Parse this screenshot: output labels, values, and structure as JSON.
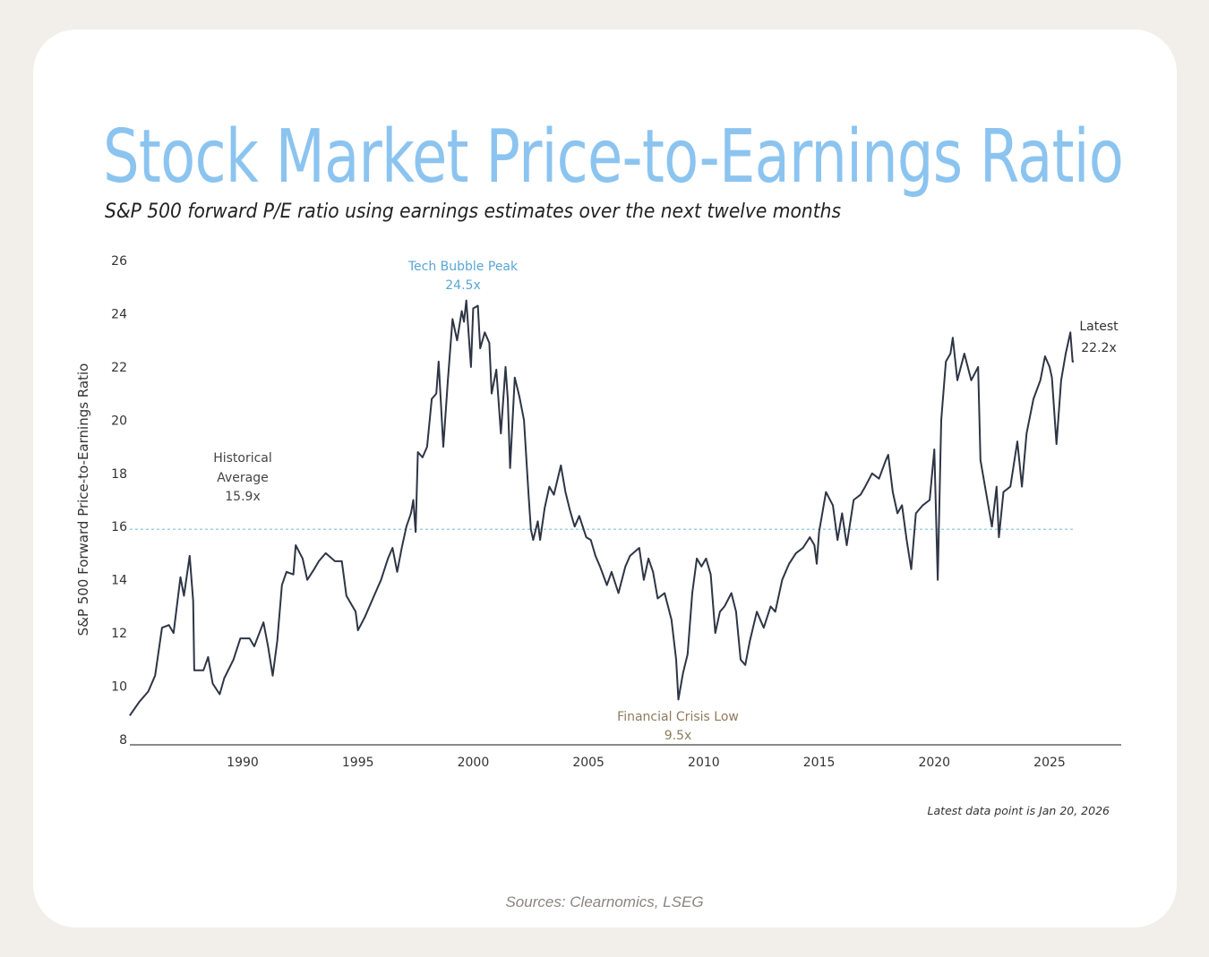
{
  "header": {
    "title": "Stock Market Price-to-Earnings Ratio",
    "subtitle": "S&P 500 forward P/E ratio using earnings estimates over the next twelve months"
  },
  "footer": {
    "sources": "Sources: Clearnomics, LSEG",
    "note": "Latest data point is Jan 20, 2026"
  },
  "colors": {
    "title": "#8cc4f0",
    "line": "#2e3545",
    "average_line": "#7fc0e6",
    "peak_label": "#5aa6d6",
    "low_label": "#8f7a5e"
  },
  "chart_data": {
    "type": "line",
    "ylabel": "S&P 500 Forward Price-to-Earnings Ratio",
    "xlabel": "",
    "xlim": [
      1985.1,
      2028.3
    ],
    "ylim": [
      8,
      26
    ],
    "xticks": [
      1990,
      1995,
      2000,
      2005,
      2010,
      2015,
      2020,
      2025
    ],
    "yticks": [
      8,
      10,
      12,
      14,
      16,
      18,
      20,
      22,
      24,
      26
    ],
    "grid": false,
    "average": {
      "value": 15.9,
      "label_lines": [
        "Historical",
        "Average",
        "15.9x"
      ]
    },
    "annotations": [
      {
        "id": "peak",
        "lines": [
          "Tech Bubble Peak",
          "24.5x"
        ],
        "x": 1999.7,
        "y": 24.5
      },
      {
        "id": "low",
        "lines": [
          "Financial Crisis Low",
          "9.5x"
        ],
        "x": 2008.9,
        "y": 9.5
      },
      {
        "id": "latest",
        "lines": [
          "Latest",
          "22.2x"
        ],
        "x": 2026.05,
        "y": 22.2
      }
    ],
    "series": [
      {
        "x": [
          1985.1,
          1985.5,
          1985.9,
          1986.2,
          1986.5,
          1986.8,
          1987.0,
          1987.3,
          1987.45,
          1987.7,
          1987.85,
          1987.9,
          1988.3,
          1988.5,
          1988.7,
          1989.0,
          1989.2,
          1989.6,
          1989.9,
          1990.3,
          1990.5,
          1990.9,
          1991.1,
          1991.3,
          1991.5,
          1991.7,
          1991.9,
          1992.2,
          1992.3,
          1992.6,
          1992.8,
          1993.1,
          1993.3,
          1993.6,
          1994.0,
          1994.3,
          1994.5,
          1994.9,
          1995.0,
          1995.3,
          1995.7,
          1996.0,
          1996.3,
          1996.5,
          1996.7,
          1996.9,
          1997.1,
          1997.3,
          1997.4,
          1997.5,
          1997.6,
          1997.8,
          1998.0,
          1998.2,
          1998.4,
          1998.5,
          1998.7,
          1998.9,
          1999.1,
          1999.3,
          1999.5,
          1999.6,
          1999.7,
          1999.9,
          2000.0,
          2000.2,
          2000.3,
          2000.5,
          2000.7,
          2000.8,
          2001.0,
          2001.2,
          2001.4,
          2001.5,
          2001.6,
          2001.8,
          2002.0,
          2002.2,
          2002.4,
          2002.5,
          2002.6,
          2002.8,
          2002.9,
          2003.1,
          2003.3,
          2003.5,
          2003.8,
          2004.0,
          2004.2,
          2004.4,
          2004.6,
          2004.9,
          2005.1,
          2005.3,
          2005.5,
          2005.8,
          2006.0,
          2006.3,
          2006.6,
          2006.8,
          2007.2,
          2007.4,
          2007.6,
          2007.8,
          2008.0,
          2008.3,
          2008.6,
          2008.8,
          2008.9,
          2009.1,
          2009.3,
          2009.5,
          2009.7,
          2009.9,
          2010.1,
          2010.3,
          2010.5,
          2010.7,
          2010.9,
          2011.2,
          2011.4,
          2011.6,
          2011.8,
          2012.0,
          2012.3,
          2012.6,
          2012.9,
          2013.1,
          2013.4,
          2013.7,
          2014.0,
          2014.3,
          2014.6,
          2014.8,
          2014.9,
          2015.0,
          2015.3,
          2015.6,
          2015.8,
          2016.0,
          2016.2,
          2016.5,
          2016.8,
          2017.0,
          2017.3,
          2017.6,
          2017.9,
          2018.0,
          2018.2,
          2018.4,
          2018.6,
          2018.8,
          2019.0,
          2019.2,
          2019.5,
          2019.8,
          2020.0,
          2020.15,
          2020.3,
          2020.5,
          2020.7,
          2020.8,
          2021.0,
          2021.3,
          2021.6,
          2021.9,
          2022.0,
          2022.3,
          2022.5,
          2022.7,
          2022.8,
          2023.0,
          2023.3,
          2023.6,
          2023.8,
          2024.0,
          2024.3,
          2024.6,
          2024.8,
          2025.0,
          2025.1,
          2025.3,
          2025.5,
          2025.7,
          2025.9,
          2026.0,
          2026.05
        ],
        "y": [
          8.9,
          9.4,
          9.8,
          10.4,
          12.2,
          12.3,
          12.0,
          14.1,
          13.4,
          14.9,
          13.2,
          10.6,
          10.6,
          11.1,
          10.1,
          9.7,
          10.3,
          11.0,
          11.8,
          11.8,
          11.5,
          12.4,
          11.5,
          10.4,
          11.7,
          13.8,
          14.3,
          14.2,
          15.3,
          14.8,
          14.0,
          14.4,
          14.7,
          15.0,
          14.7,
          14.7,
          13.4,
          12.8,
          12.1,
          12.6,
          13.4,
          14.0,
          14.8,
          15.2,
          14.3,
          15.2,
          16.0,
          16.5,
          17.0,
          15.8,
          18.8,
          18.6,
          19.0,
          20.8,
          21.0,
          22.2,
          19.0,
          21.5,
          23.8,
          23.0,
          24.1,
          23.7,
          24.5,
          22.0,
          24.2,
          24.3,
          22.7,
          23.3,
          22.9,
          21.0,
          21.9,
          19.5,
          22.0,
          20.8,
          18.2,
          21.6,
          20.9,
          20.0,
          17.2,
          15.9,
          15.5,
          16.2,
          15.5,
          16.7,
          17.5,
          17.2,
          18.3,
          17.3,
          16.6,
          16.0,
          16.4,
          15.6,
          15.5,
          14.9,
          14.5,
          13.8,
          14.3,
          13.5,
          14.5,
          14.9,
          15.2,
          14.0,
          14.8,
          14.3,
          13.3,
          13.5,
          12.5,
          11.0,
          9.5,
          10.5,
          11.2,
          13.5,
          14.8,
          14.5,
          14.8,
          14.2,
          12.0,
          12.8,
          13.0,
          13.5,
          12.8,
          11.0,
          10.8,
          11.7,
          12.8,
          12.2,
          13.0,
          12.8,
          14.0,
          14.6,
          15.0,
          15.2,
          15.6,
          15.3,
          14.6,
          15.8,
          17.3,
          16.8,
          15.5,
          16.5,
          15.3,
          17.0,
          17.2,
          17.5,
          18.0,
          17.8,
          18.5,
          18.7,
          17.3,
          16.5,
          16.8,
          15.5,
          14.4,
          16.5,
          16.8,
          17.0,
          18.9,
          14.0,
          20.0,
          22.2,
          22.5,
          23.1,
          21.5,
          22.5,
          21.5,
          22.0,
          18.5,
          17.0,
          16.0,
          17.5,
          15.6,
          17.3,
          17.5,
          19.2,
          17.5,
          19.5,
          20.8,
          21.5,
          22.4,
          22.0,
          21.6,
          19.1,
          21.5,
          22.5,
          23.3,
          22.2,
          22.2
        ]
      }
    ]
  }
}
